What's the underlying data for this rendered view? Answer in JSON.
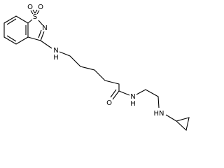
{
  "atoms": [
    {
      "label": "O"
    },
    {
      "label": "O"
    },
    {
      "label": "S"
    },
    {
      "label": "N"
    },
    {
      "label": "N"
    },
    {
      "label": "H"
    },
    {
      "label": "O"
    },
    {
      "label": "N"
    },
    {
      "label": "H"
    },
    {
      "label": "HN"
    }
  ]
}
